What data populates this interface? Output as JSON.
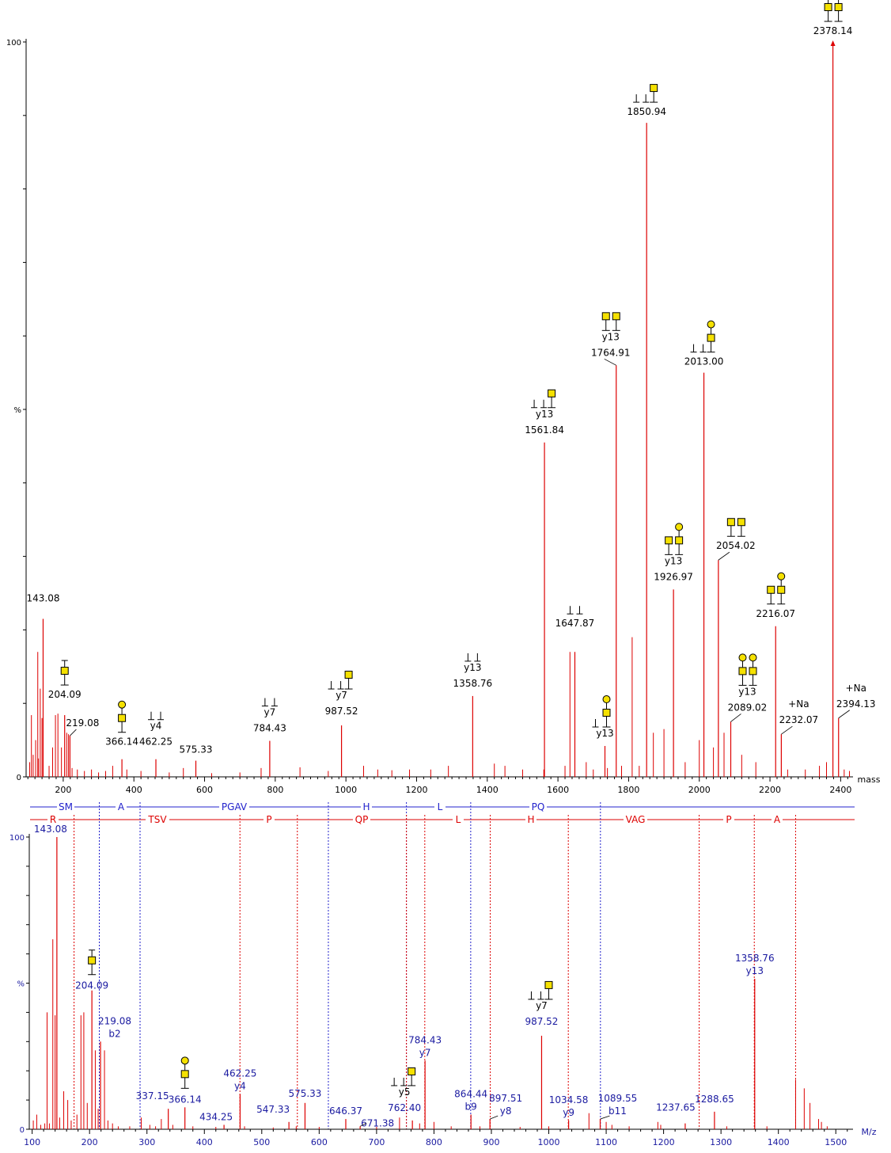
{
  "chart_data": [
    {
      "type": "bar",
      "panel": "top",
      "xlabel": "mass",
      "ylabel": "%",
      "xlim": [
        95,
        2435
      ],
      "ylim": [
        0,
        100
      ],
      "xticks": [
        200,
        400,
        600,
        800,
        1000,
        1200,
        1400,
        1600,
        1800,
        2000,
        2200,
        2400
      ],
      "yticks": [
        {
          "value": 0,
          "label": "0"
        },
        {
          "value": 50,
          "label": "%"
        },
        {
          "value": 100,
          "label": "100"
        }
      ],
      "color": "#dd0000",
      "peaks": [
        {
          "x": 143.08,
          "y": 21.5,
          "label": "143.08"
        },
        {
          "x": 204.09,
          "y": 8.4,
          "label": "204.09",
          "glycan": "gal-open"
        },
        {
          "x": 219.08,
          "y": 5.6,
          "label": "219.08"
        },
        {
          "x": 366.14,
          "y": 2.4,
          "label": "366.14",
          "glycan": "gal-circle"
        },
        {
          "x": 462.25,
          "y": 2.4,
          "label": "462.25",
          "ion": "y4",
          "glycan": "tt"
        },
        {
          "x": 575.33,
          "y": 2.2,
          "label": "575.33"
        },
        {
          "x": 784.43,
          "y": 4.9,
          "label": "784.43",
          "ion": "y7",
          "glycan": "tt"
        },
        {
          "x": 987.52,
          "y": 7.0,
          "label": "987.52",
          "ion": "y7",
          "glycan": "tt-box"
        },
        {
          "x": 1358.76,
          "y": 11.0,
          "label": "1358.76",
          "ion": "y13",
          "glycan": "tt"
        },
        {
          "x": 1561.84,
          "y": 45.5,
          "label": "1561.84",
          "ion": "y13",
          "glycan": "tt-box"
        },
        {
          "x": 1647.87,
          "y": 17.0,
          "label": "1647.87",
          "glycan": "tt"
        },
        {
          "x": 1764.91,
          "y": 56.0,
          "label": "1764.91",
          "ion": "y13",
          "glycan": "box-box"
        },
        {
          "x": 1850.94,
          "y": 89.0,
          "label": "1850.94",
          "glycan": "tt-box"
        },
        {
          "x": 2013.0,
          "y": 55.0,
          "label": "2013.00",
          "glycan": "tt-circle-box"
        },
        {
          "x": 2054.02,
          "y": 29.5,
          "label": "2054.02",
          "glycan": "boxes"
        },
        {
          "x": 1926.97,
          "y": 25.5,
          "label": "1926.97",
          "ion": "y13",
          "glycan": "box-circlebox"
        },
        {
          "x": 2216.07,
          "y": 20.5,
          "label": "2216.07",
          "glycan": "box-circlebox"
        },
        {
          "x": 2089.02,
          "y": 7.5,
          "label": "2089.02",
          "ion": "y13",
          "glycan": "circlebox-circlebox"
        },
        {
          "x": 1733.0,
          "y": 4.2,
          "label": "",
          "ion": "y13",
          "glycan": "t-circlebox"
        },
        {
          "x": 2232.07,
          "y": 5.8,
          "label": "2232.07",
          "ion": "+Na"
        },
        {
          "x": 2378.14,
          "y": 100,
          "label": "2378.14",
          "glycan": "circlebox-circlebox-top"
        },
        {
          "x": 2394.13,
          "y": 8.0,
          "label": "2394.13",
          "ion": "+Na"
        }
      ]
    },
    {
      "type": "bar",
      "panel": "bottom",
      "xlabel": "M/z",
      "ylabel": "%",
      "xlim": [
        95,
        1530
      ],
      "ylim": [
        0,
        100
      ],
      "xticks": [
        100,
        200,
        300,
        400,
        500,
        600,
        700,
        800,
        900,
        1000,
        1100,
        1200,
        1300,
        1400,
        1500
      ],
      "yticks": [
        {
          "value": 0,
          "label": "0"
        },
        {
          "value": 50,
          "label": "%"
        },
        {
          "value": 100,
          "label": "100"
        }
      ],
      "color": "#dd0000",
      "label_color": "#1a1aa0",
      "sequence_b": [
        "SM",
        "A",
        "PGAV",
        "H",
        "L",
        "PQ"
      ],
      "sequence_y": [
        "R",
        "TSV",
        "P",
        "QP",
        "L",
        "H",
        "VAG",
        "P",
        "A"
      ],
      "b_boundaries": [
        217,
        288,
        616,
        752,
        864,
        1090
      ],
      "y_boundaries": [
        173,
        462,
        562,
        752,
        784,
        898,
        1034,
        1262,
        1358,
        1430
      ],
      "peaks": [
        {
          "x": 143.08,
          "y": 100,
          "label": "143.08"
        },
        {
          "x": 204.09,
          "y": 47.5,
          "label": "204.09",
          "glycan": "gal-open"
        },
        {
          "x": 219.08,
          "y": 30.0,
          "label": "219.08",
          "ion": "b2"
        },
        {
          "x": 337.15,
          "y": 7.0,
          "label": "337.15"
        },
        {
          "x": 366.14,
          "y": 7.5,
          "label": "366.14",
          "glycan": "gal-circle"
        },
        {
          "x": 434.25,
          "y": 1.5,
          "label": "434.25"
        },
        {
          "x": 462.25,
          "y": 12.0,
          "label": "462.25",
          "ion": "y4"
        },
        {
          "x": 547.33,
          "y": 2.5,
          "label": "547.33"
        },
        {
          "x": 575.33,
          "y": 9.0,
          "label": "575.33"
        },
        {
          "x": 646.37,
          "y": 3.5,
          "label": "646.37"
        },
        {
          "x": 671.38,
          "y": 1.0,
          "label": "671.38"
        },
        {
          "x": 762.4,
          "y": 3.0,
          "label": "762.40",
          "ion": "y5",
          "glycan": "tt-box"
        },
        {
          "x": 784.43,
          "y": 23.5,
          "label": "784.43",
          "ion": "y7"
        },
        {
          "x": 864.44,
          "y": 5.0,
          "label": "864.44",
          "ion": "b9"
        },
        {
          "x": 897.51,
          "y": 3.5,
          "label": "897.51",
          "ion": "y8"
        },
        {
          "x": 987.52,
          "y": 32.0,
          "label": "987.52",
          "ion": "y7",
          "glycan": "tt-box"
        },
        {
          "x": 1034.58,
          "y": 3.0,
          "label": "1034.58",
          "ion": "y9"
        },
        {
          "x": 1089.55,
          "y": 3.5,
          "label": "1089.55",
          "ion": "b11"
        },
        {
          "x": 1237.65,
          "y": 2.0,
          "label": "1237.65"
        },
        {
          "x": 1288.65,
          "y": 6.0,
          "label": "1288.65"
        },
        {
          "x": 1358.76,
          "y": 51.5,
          "label": "1358.76",
          "ion": "y13"
        }
      ]
    }
  ]
}
